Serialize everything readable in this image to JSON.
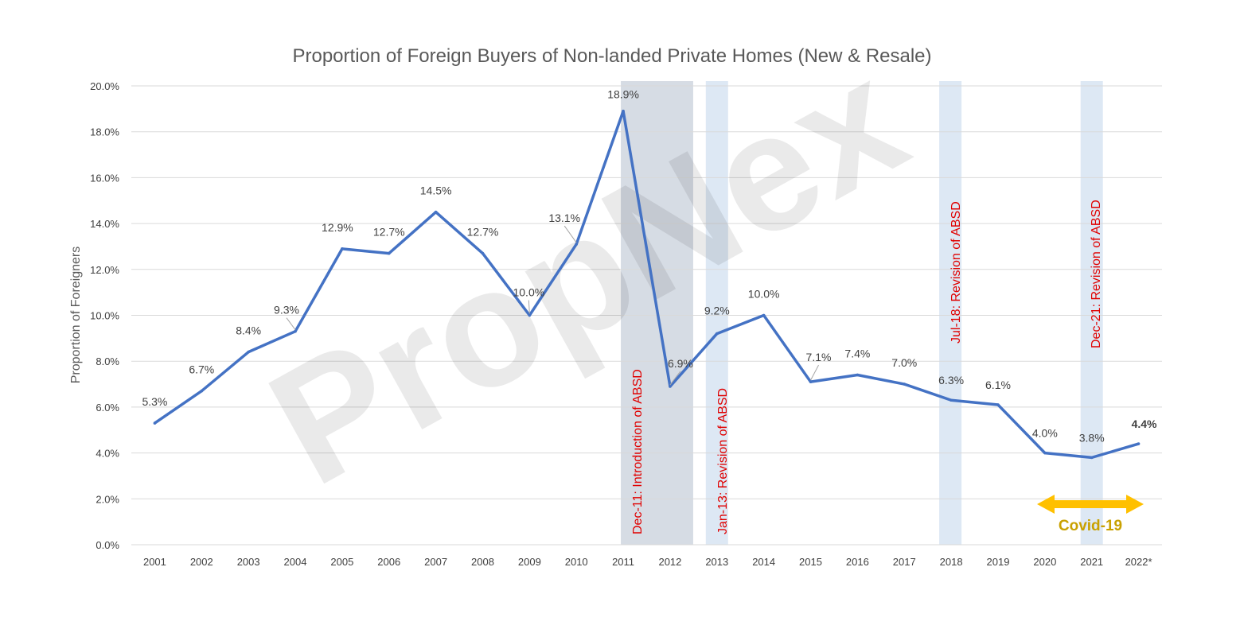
{
  "chart_data": {
    "type": "line",
    "title": "Proportion of Foreign Buyers of Non-landed Private Homes (New & Resale)",
    "xlabel": "",
    "ylabel": "Proportion of Foreigners",
    "ylim": [
      0,
      20
    ],
    "y_ticks": [
      "0.0%",
      "2.0%",
      "4.0%",
      "6.0%",
      "8.0%",
      "10.0%",
      "12.0%",
      "14.0%",
      "16.0%",
      "18.0%",
      "20.0%"
    ],
    "categories": [
      "2001",
      "2002",
      "2003",
      "2004",
      "2005",
      "2006",
      "2007",
      "2008",
      "2009",
      "2010",
      "2011",
      "2012",
      "2013",
      "2014",
      "2015",
      "2016",
      "2017",
      "2018",
      "2019",
      "2020",
      "2021",
      "2022*"
    ],
    "series": [
      {
        "values": [
          5.3,
          6.7,
          8.4,
          9.3,
          12.9,
          12.7,
          14.5,
          12.7,
          10.0,
          13.1,
          18.9,
          6.9,
          9.2,
          10.0,
          7.1,
          7.4,
          7.0,
          6.3,
          6.1,
          4.0,
          3.8,
          4.4
        ],
        "labels": [
          "5.3%",
          "6.7%",
          "8.4%",
          "9.3%",
          "12.9%",
          "12.7%",
          "14.5%",
          "12.7%",
          "10.0%",
          "13.1%",
          "18.9%",
          "6.9%",
          "9.2%",
          "10.0%",
          "7.1%",
          "7.4%",
          "7.0%",
          "6.3%",
          "6.1%",
          "4.0%",
          "3.8%",
          "4.4%"
        ],
        "color": "#4472c4"
      }
    ],
    "grid": true,
    "legend": "none",
    "annotations": [
      {
        "text": "Dec-11: Introduction of ABSD",
        "year": "2011-2012",
        "color": "#e00000"
      },
      {
        "text": "Jan-13: Revision of ABSD",
        "year": "2013",
        "color": "#e00000"
      },
      {
        "text": "Jul-18: Revision of ABSD",
        "year": "2018",
        "color": "#e00000"
      },
      {
        "text": "Dec-21: Revision of ABSD",
        "year": "2021",
        "color": "#e00000"
      }
    ],
    "covid": {
      "text": "Covid-19",
      "span": [
        "2020",
        "2022*"
      ],
      "color": "#c9a100",
      "arrow_color": "#ffc000"
    },
    "watermark": "PropNex",
    "colors": {
      "band_dark": "#d6dce4",
      "band_light": "#dde8f4",
      "grid": "#d9d9d9"
    }
  }
}
